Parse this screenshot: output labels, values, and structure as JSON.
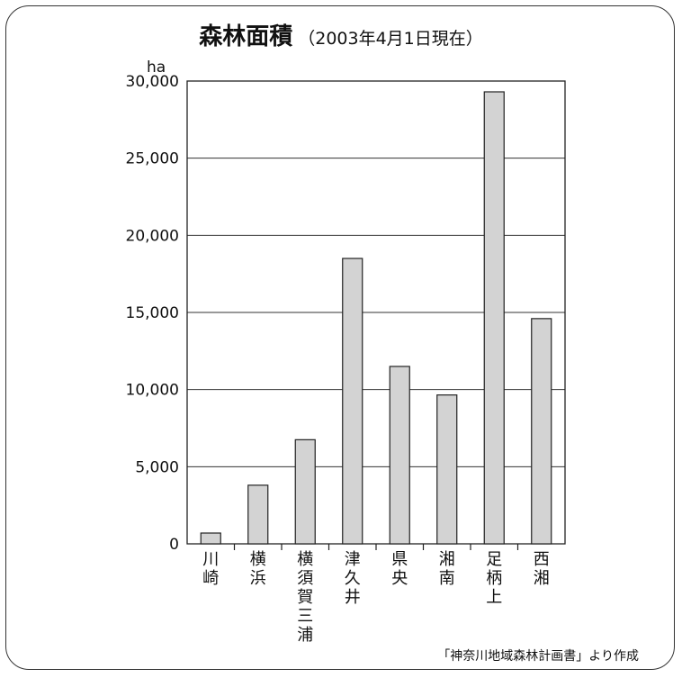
{
  "title": "森林面積",
  "subtitle": "（2003年4月1日現在）",
  "source": "「神奈川地域森林計画書」より作成",
  "chart_data": {
    "type": "bar",
    "ylabel": "ha",
    "ylim": [
      0,
      30000
    ],
    "yticks": [
      0,
      5000,
      10000,
      15000,
      20000,
      25000,
      30000
    ],
    "ytick_labels": [
      "0",
      "5,000",
      "10,000",
      "15,000",
      "20,000",
      "25,000",
      "30,000"
    ],
    "grid": true,
    "categories": [
      "川崎",
      "横浜",
      "横須賀三浦",
      "津久井",
      "県央",
      "湘南",
      "足柄上",
      "西湘"
    ],
    "values": [
      700,
      3800,
      6750,
      18500,
      11500,
      9650,
      29300,
      14600
    ],
    "bar_color": "#d3d3d3",
    "bar_edge_color": "#222222"
  }
}
